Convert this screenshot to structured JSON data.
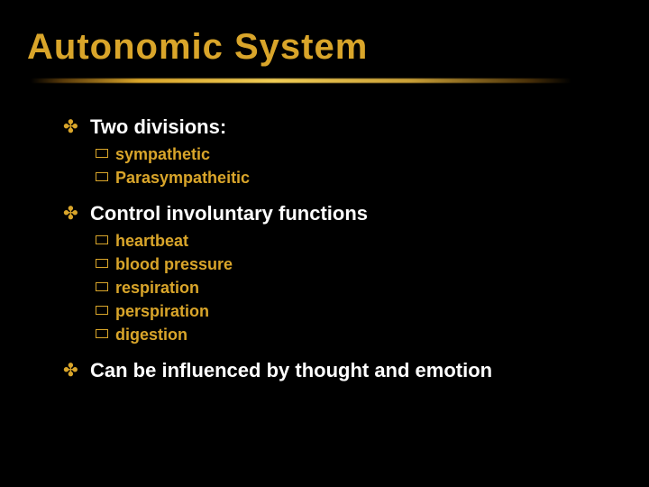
{
  "colors": {
    "background": "#000000",
    "title": "#d9a52a",
    "l1_bullet": "#d9a52a",
    "l1_text": "#ffffff",
    "l2_bullet_border": "#d9a52a",
    "l2_text": "#d9a52a"
  },
  "typography": {
    "title_fontsize": 40,
    "l1_fontsize": 22,
    "l2_fontsize": 18
  },
  "title": "Autonomic System",
  "bullets": [
    {
      "text": "Two divisions:",
      "sub": [
        "sympathetic",
        "Parasympatheitic"
      ]
    },
    {
      "text": "Control involuntary functions",
      "sub": [
        "heartbeat",
        "blood pressure",
        "respiration",
        "perspiration",
        "digestion"
      ]
    },
    {
      "text": "Can be influenced by thought and emotion",
      "sub": []
    }
  ]
}
